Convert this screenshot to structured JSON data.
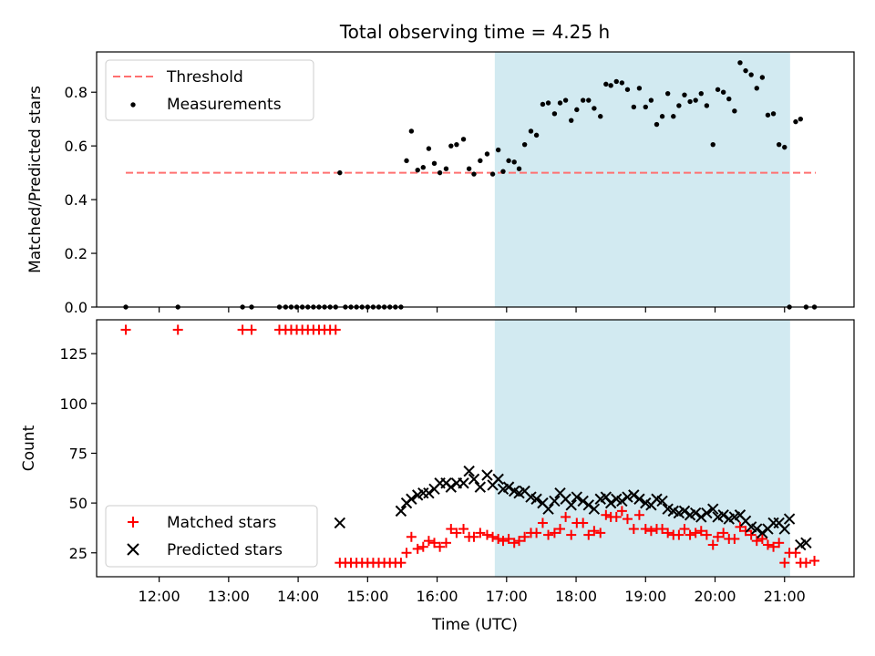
{
  "chart_data": [
    {
      "type": "scatter",
      "title": "Total observing time = 4.25 h",
      "ylabel": "Matched/Predicted stars",
      "xlabel": "",
      "xlim": [
        11.1,
        22.0
      ],
      "ylim": [
        0.0,
        0.95
      ],
      "yticks": [
        0.0,
        0.2,
        0.4,
        0.6,
        0.8
      ],
      "ytick_labels": [
        "0.0",
        "0.2",
        "0.4",
        "0.6",
        "0.8"
      ],
      "shaded_interval": {
        "start": 16.83,
        "end": 21.08,
        "color": "#add8e6"
      },
      "legend_position": "top-left",
      "series": [
        {
          "name": "Threshold",
          "style": "dashed-line",
          "color": "#ff7070",
          "x": [
            11.52,
            21.45
          ],
          "y": [
            0.5,
            0.5
          ]
        },
        {
          "name": "Measurements",
          "style": "dot",
          "color": "#000000",
          "x": [
            11.52,
            12.27,
            13.2,
            13.33,
            13.73,
            13.82,
            13.9,
            13.98,
            14.06,
            14.14,
            14.22,
            14.3,
            14.38,
            14.46,
            14.54,
            14.6,
            14.68,
            14.76,
            14.84,
            14.92,
            15.0,
            15.08,
            15.16,
            15.24,
            15.32,
            15.4,
            15.48,
            15.56,
            15.63,
            15.72,
            15.8,
            15.88,
            15.96,
            16.04,
            16.13,
            16.2,
            16.28,
            16.38,
            16.46,
            16.53,
            16.62,
            16.72,
            16.8,
            16.88,
            16.95,
            17.03,
            17.11,
            17.18,
            17.26,
            17.35,
            17.43,
            17.52,
            17.6,
            17.69,
            17.77,
            17.85,
            17.93,
            18.01,
            18.1,
            18.18,
            18.26,
            18.35,
            18.43,
            18.5,
            18.58,
            18.66,
            18.74,
            18.83,
            18.91,
            19.0,
            19.08,
            19.16,
            19.24,
            19.32,
            19.4,
            19.48,
            19.56,
            19.64,
            19.72,
            19.8,
            19.88,
            19.97,
            20.04,
            20.12,
            20.2,
            20.28,
            20.36,
            20.44,
            20.52,
            20.6,
            20.68,
            20.76,
            20.84,
            20.92,
            21.0,
            21.07,
            21.16,
            21.23,
            21.31,
            21.43
          ],
          "y": [
            0.0,
            0.0,
            0.0,
            0.0,
            0.0,
            0.0,
            0.0,
            0.0,
            0.0,
            0.0,
            0.0,
            0.0,
            0.0,
            0.0,
            0.0,
            0.5,
            0.0,
            0.0,
            0.0,
            0.0,
            0.0,
            0.0,
            0.0,
            0.0,
            0.0,
            0.0,
            0.0,
            0.545,
            0.655,
            0.51,
            0.52,
            0.59,
            0.535,
            0.5,
            0.515,
            0.6,
            0.605,
            0.625,
            0.515,
            0.495,
            0.545,
            0.57,
            0.495,
            0.585,
            0.505,
            0.545,
            0.54,
            0.515,
            0.605,
            0.655,
            0.64,
            0.755,
            0.76,
            0.72,
            0.76,
            0.77,
            0.695,
            0.735,
            0.77,
            0.77,
            0.74,
            0.71,
            0.83,
            0.825,
            0.84,
            0.835,
            0.81,
            0.745,
            0.815,
            0.745,
            0.77,
            0.68,
            0.71,
            0.795,
            0.71,
            0.75,
            0.79,
            0.765,
            0.77,
            0.795,
            0.75,
            0.605,
            0.81,
            0.8,
            0.775,
            0.73,
            0.91,
            0.88,
            0.865,
            0.815,
            0.855,
            0.715,
            0.72,
            0.605,
            0.595,
            0.0,
            0.69,
            0.7,
            0.0,
            0.0
          ]
        }
      ]
    },
    {
      "type": "scatter",
      "title": "",
      "ylabel": "Count",
      "xlabel": "Time (UTC)",
      "xlim": [
        11.1,
        22.0
      ],
      "ylim": [
        13,
        142
      ],
      "yticks": [
        25,
        50,
        75,
        100,
        125
      ],
      "ytick_labels": [
        "25",
        "50",
        "75",
        "100",
        "125"
      ],
      "xticks": [
        12,
        13,
        14,
        15,
        16,
        17,
        18,
        19,
        20,
        21
      ],
      "xtick_labels": [
        "12:00",
        "13:00",
        "14:00",
        "15:00",
        "16:00",
        "17:00",
        "18:00",
        "19:00",
        "20:00",
        "21:00"
      ],
      "shaded_interval": {
        "start": 16.83,
        "end": 21.08,
        "color": "#add8e6"
      },
      "legend_position": "bottom-left",
      "series": [
        {
          "name": "Matched stars",
          "marker": "plus",
          "color": "#ff0000",
          "x": [
            11.52,
            12.27,
            13.2,
            13.33,
            13.73,
            13.82,
            13.9,
            13.98,
            14.06,
            14.14,
            14.22,
            14.3,
            14.38,
            14.46,
            14.54,
            14.6,
            14.68,
            14.76,
            14.84,
            14.92,
            15.0,
            15.08,
            15.16,
            15.24,
            15.32,
            15.4,
            15.48,
            15.56,
            15.63,
            15.72,
            15.8,
            15.88,
            15.96,
            16.04,
            16.13,
            16.2,
            16.28,
            16.38,
            16.46,
            16.53,
            16.62,
            16.72,
            16.8,
            16.88,
            16.95,
            17.03,
            17.11,
            17.18,
            17.26,
            17.35,
            17.43,
            17.52,
            17.6,
            17.69,
            17.77,
            17.85,
            17.93,
            18.01,
            18.1,
            18.18,
            18.26,
            18.35,
            18.43,
            18.5,
            18.58,
            18.66,
            18.74,
            18.83,
            18.91,
            19.0,
            19.08,
            19.16,
            19.24,
            19.32,
            19.4,
            19.48,
            19.56,
            19.64,
            19.72,
            19.8,
            19.88,
            19.97,
            20.04,
            20.12,
            20.2,
            20.28,
            20.36,
            20.44,
            20.52,
            20.6,
            20.68,
            20.76,
            20.84,
            20.92,
            21.0,
            21.07,
            21.16,
            21.23,
            21.31,
            21.43
          ],
          "y": [
            137,
            137,
            137,
            137,
            137,
            137,
            137,
            137,
            137,
            137,
            137,
            137,
            137,
            137,
            137,
            20,
            20,
            20,
            20,
            20,
            20,
            20,
            20,
            20,
            20,
            20,
            20,
            25,
            33,
            27,
            28,
            31,
            30,
            28,
            30,
            37,
            35,
            37,
            33,
            33,
            35,
            34,
            33,
            32,
            31,
            32,
            30,
            31,
            33,
            35,
            35,
            40,
            34,
            35,
            37,
            43,
            34,
            40,
            40,
            34,
            36,
            35,
            44,
            43,
            43,
            46,
            42,
            37,
            44,
            37,
            36,
            37,
            37,
            35,
            34,
            34,
            37,
            34,
            35,
            36,
            34,
            29,
            33,
            35,
            32,
            32,
            38,
            36,
            34,
            31,
            32,
            29,
            28,
            30,
            20,
            25,
            25,
            20,
            20,
            21
          ]
        },
        {
          "name": "Predicted stars",
          "marker": "x",
          "color": "#000000",
          "x": [
            14.6,
            15.48,
            15.56,
            15.63,
            15.72,
            15.8,
            15.88,
            15.96,
            16.04,
            16.13,
            16.2,
            16.28,
            16.38,
            16.46,
            16.53,
            16.62,
            16.72,
            16.8,
            16.88,
            16.95,
            17.03,
            17.11,
            17.18,
            17.26,
            17.35,
            17.43,
            17.52,
            17.6,
            17.69,
            17.77,
            17.85,
            17.93,
            18.01,
            18.1,
            18.18,
            18.26,
            18.35,
            18.43,
            18.5,
            18.58,
            18.66,
            18.74,
            18.83,
            18.91,
            19.0,
            19.08,
            19.16,
            19.24,
            19.32,
            19.4,
            19.48,
            19.56,
            19.64,
            19.72,
            19.8,
            19.88,
            19.97,
            20.04,
            20.12,
            20.2,
            20.28,
            20.36,
            20.44,
            20.52,
            20.6,
            20.68,
            20.76,
            20.84,
            20.92,
            21.0,
            21.07,
            21.23,
            21.31
          ],
          "y": [
            40,
            46,
            50,
            52,
            54,
            55,
            55,
            57,
            60,
            60,
            58,
            60,
            60,
            66,
            62,
            58,
            64,
            59,
            62,
            57,
            58,
            56,
            55,
            56,
            53,
            52,
            50,
            47,
            51,
            55,
            52,
            49,
            53,
            51,
            49,
            47,
            52,
            53,
            50,
            52,
            51,
            53,
            54,
            52,
            50,
            49,
            52,
            51,
            47,
            46,
            45,
            46,
            44,
            45,
            43,
            45,
            47,
            43,
            44,
            42,
            43,
            44,
            41,
            38,
            37,
            35,
            37,
            40,
            40,
            37,
            42,
            29,
            30
          ]
        }
      ]
    }
  ]
}
